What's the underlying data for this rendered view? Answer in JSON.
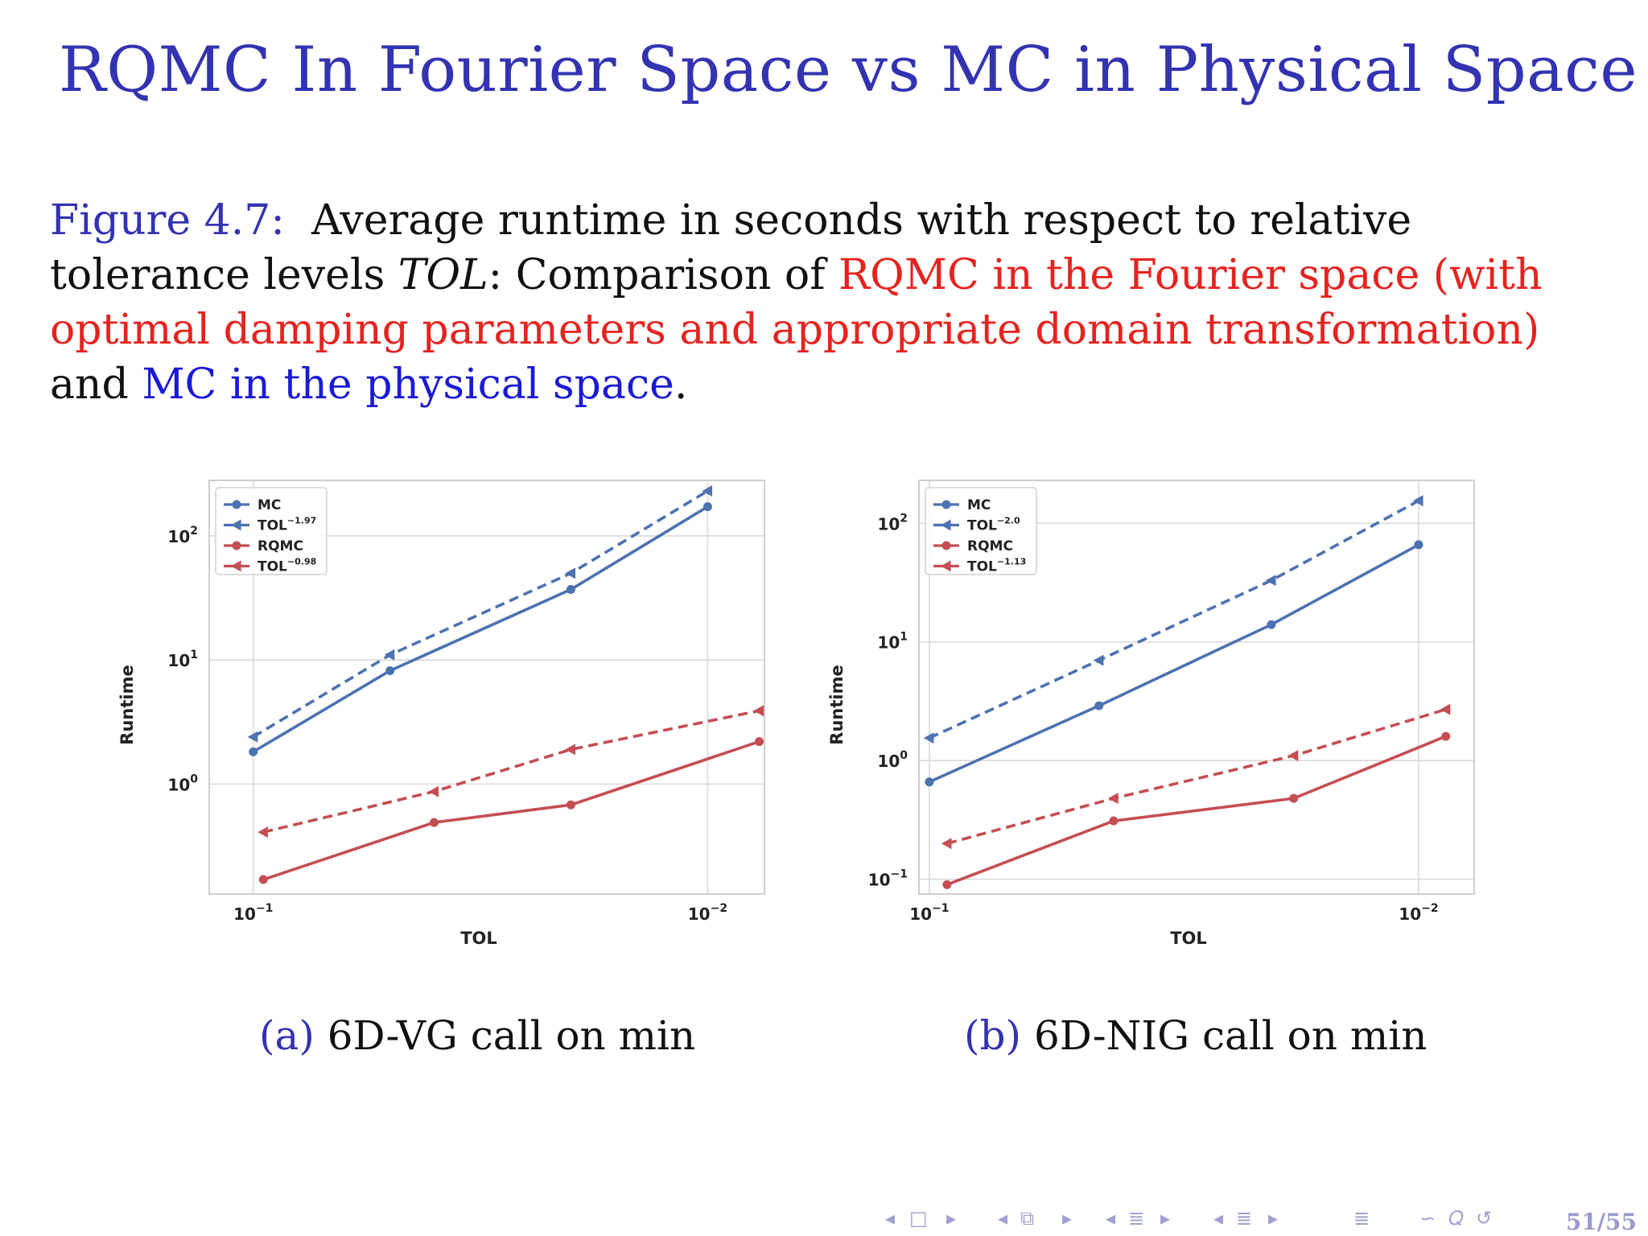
{
  "slide": {
    "title": "RQMC In Fourier Space vs MC in Physical Space",
    "caption": {
      "label": "Figure 4.7:",
      "text1": "Average runtime in seconds with respect to relative tolerance levels ",
      "tol": "TOL",
      "text2": ": Comparison of ",
      "red_text": "RQMC in the Fourier space (with optimal damping parameters and appropriate domain transformation)",
      "text3": " and ",
      "blue_text": "MC in the physical space",
      "text4": "."
    },
    "subcaptions": [
      {
        "label": "(a)",
        "text": "6D-VG call on min"
      },
      {
        "label": "(b)",
        "text": "6D-NIG call on min"
      }
    ],
    "nav_glyphs": [
      "◂",
      "□",
      "▸",
      "◂",
      "⧉",
      "▸",
      "◂",
      "≣",
      "▸",
      "◂",
      "≣",
      "▸",
      "≣",
      "∽",
      "𝑄",
      "↺"
    ],
    "page": "51/55"
  },
  "colors": {
    "blue": "#4c72b0",
    "red": "#c44e52",
    "grid": "#d9d9d9",
    "title": "#3333b2"
  },
  "chart_data": [
    {
      "type": "line",
      "xlabel": "TOL",
      "ylabel": "Runtime",
      "xscale": "log",
      "yscale": "log",
      "x_inverted": true,
      "xlim": [
        0.125,
        0.0075
      ],
      "ylim": [
        0.13,
        280
      ],
      "xticks": [
        {
          "value": 0.1,
          "base": "10",
          "exp": "−1"
        },
        {
          "value": 0.01,
          "base": "10",
          "exp": "−2"
        }
      ],
      "yticks": [
        {
          "value": 1,
          "base": "10",
          "exp": "0"
        },
        {
          "value": 10,
          "base": "10",
          "exp": "1"
        },
        {
          "value": 100,
          "base": "10",
          "exp": "2"
        }
      ],
      "grid": true,
      "legend_position": "top-left",
      "series": [
        {
          "name": "MC",
          "legend_base": "MC",
          "legend_exp": "",
          "color": "#4c72b0",
          "style": "solid",
          "marker": "circle",
          "x": [
            0.1,
            0.05,
            0.02,
            0.01
          ],
          "y": [
            1.82,
            8.2,
            37,
            172
          ]
        },
        {
          "name": "TOL^-1.97",
          "legend_base": "TOL",
          "legend_exp": "−1.97",
          "color": "#4c72b0",
          "style": "dashed",
          "marker": "triangle-left",
          "x": [
            0.1,
            0.05,
            0.02,
            0.01
          ],
          "y": [
            2.4,
            11,
            50,
            230
          ]
        },
        {
          "name": "RQMC",
          "legend_base": "RQMC",
          "legend_exp": "",
          "color": "#c44e52",
          "style": "solid",
          "marker": "circle",
          "x": [
            0.095,
            0.04,
            0.02,
            0.0077
          ],
          "y": [
            0.17,
            0.49,
            0.68,
            2.2
          ]
        },
        {
          "name": "TOL^-0.98",
          "legend_base": "TOL",
          "legend_exp": "−0.98",
          "color": "#c44e52",
          "style": "dashed",
          "marker": "triangle-left",
          "x": [
            0.095,
            0.04,
            0.02,
            0.0077
          ],
          "y": [
            0.41,
            0.87,
            1.9,
            3.9
          ]
        }
      ]
    },
    {
      "type": "line",
      "xlabel": "TOL",
      "ylabel": "Runtime",
      "xscale": "log",
      "yscale": "log",
      "x_inverted": true,
      "xlim": [
        0.105,
        0.0077
      ],
      "ylim": [
        0.075,
        230
      ],
      "xticks": [
        {
          "value": 0.1,
          "base": "10",
          "exp": "−1"
        },
        {
          "value": 0.01,
          "base": "10",
          "exp": "−2"
        }
      ],
      "yticks": [
        {
          "value": 0.1,
          "base": "10",
          "exp": "−1"
        },
        {
          "value": 1,
          "base": "10",
          "exp": "0"
        },
        {
          "value": 10,
          "base": "10",
          "exp": "1"
        },
        {
          "value": 100,
          "base": "10",
          "exp": "2"
        }
      ],
      "grid": true,
      "legend_position": "top-left",
      "series": [
        {
          "name": "MC",
          "legend_base": "MC",
          "legend_exp": "",
          "color": "#4c72b0",
          "style": "solid",
          "marker": "circle",
          "x": [
            0.1,
            0.045,
            0.02,
            0.01
          ],
          "y": [
            0.66,
            2.9,
            14,
            66
          ]
        },
        {
          "name": "TOL^-2.0",
          "legend_base": "TOL",
          "legend_exp": "−2.0",
          "color": "#4c72b0",
          "style": "dashed",
          "marker": "triangle-left",
          "x": [
            0.1,
            0.045,
            0.02,
            0.01
          ],
          "y": [
            1.55,
            7.0,
            33,
            155
          ]
        },
        {
          "name": "RQMC",
          "legend_base": "RQMC",
          "legend_exp": "",
          "color": "#c44e52",
          "style": "solid",
          "marker": "circle",
          "x": [
            0.092,
            0.042,
            0.018,
            0.0088
          ],
          "y": [
            0.09,
            0.31,
            0.48,
            1.6
          ]
        },
        {
          "name": "TOL^-1.13",
          "legend_base": "TOL",
          "legend_exp": "−1.13",
          "color": "#c44e52",
          "style": "dashed",
          "marker": "triangle-left",
          "x": [
            0.092,
            0.042,
            0.018,
            0.0088
          ],
          "y": [
            0.2,
            0.48,
            1.1,
            2.7
          ]
        }
      ]
    }
  ]
}
